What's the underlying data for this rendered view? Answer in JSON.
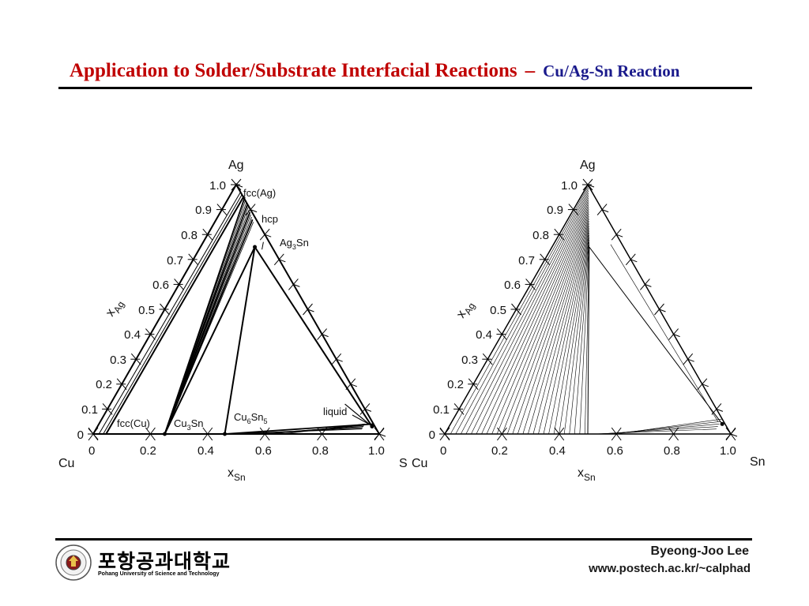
{
  "slide": {
    "title_main": "Application to Solder/Substrate Interfacial Reactions",
    "title_dash": "–",
    "title_sub": "Cu/Ag-Sn Reaction"
  },
  "left_diagram": {
    "apex_label": "Ag",
    "left_corner": "Cu",
    "right_corner": "S",
    "x_axis_label": "x",
    "x_axis_sub": "Sn",
    "y_axis_label": "x",
    "y_axis_sub": "Ag",
    "x_ticks": [
      "0",
      "0.2",
      "0.4",
      "0.6",
      "0.8",
      "1.0"
    ],
    "y_ticks": [
      "0",
      "0.1",
      "0.2",
      "0.3",
      "0.4",
      "0.5",
      "0.6",
      "0.7",
      "0.8",
      "0.9",
      "1.0"
    ],
    "phase_labels": {
      "fcc_ag": "fcc(Ag)",
      "hcp": "hcp",
      "ag3sn_base": "Ag",
      "ag3sn_sub": "3",
      "ag3sn_end": "Sn",
      "fcc_cu": "fcc(Cu)",
      "cu3sn_base": "Cu",
      "cu3sn_sub": "3",
      "cu3sn_end": "Sn",
      "cu6sn5_a": "Cu",
      "cu6sn5_sub1": "6",
      "cu6sn5_b": "Sn",
      "cu6sn5_sub2": "5",
      "liquid": "liquid"
    }
  },
  "right_diagram": {
    "apex_label": "Ag",
    "left_corner": "Cu",
    "right_corner": "Sn",
    "x_axis_label": "x",
    "x_axis_sub": "Sn",
    "y_axis_label": "x",
    "y_axis_sub": "Ag",
    "x_ticks": [
      "0",
      "0.2",
      "0.4",
      "0.6",
      "0.8",
      "1.0"
    ],
    "y_ticks": [
      "0",
      "0.1",
      "0.2",
      "0.3",
      "0.4",
      "0.5",
      "0.6",
      "0.7",
      "0.8",
      "0.9",
      "1.0"
    ]
  },
  "footer": {
    "university_korean": "포항공과대학교",
    "university_english": "Pohang University of Science and Technology",
    "author": "Byeong-Joo Lee",
    "url": "www.postech.ac.kr/~calphad"
  }
}
